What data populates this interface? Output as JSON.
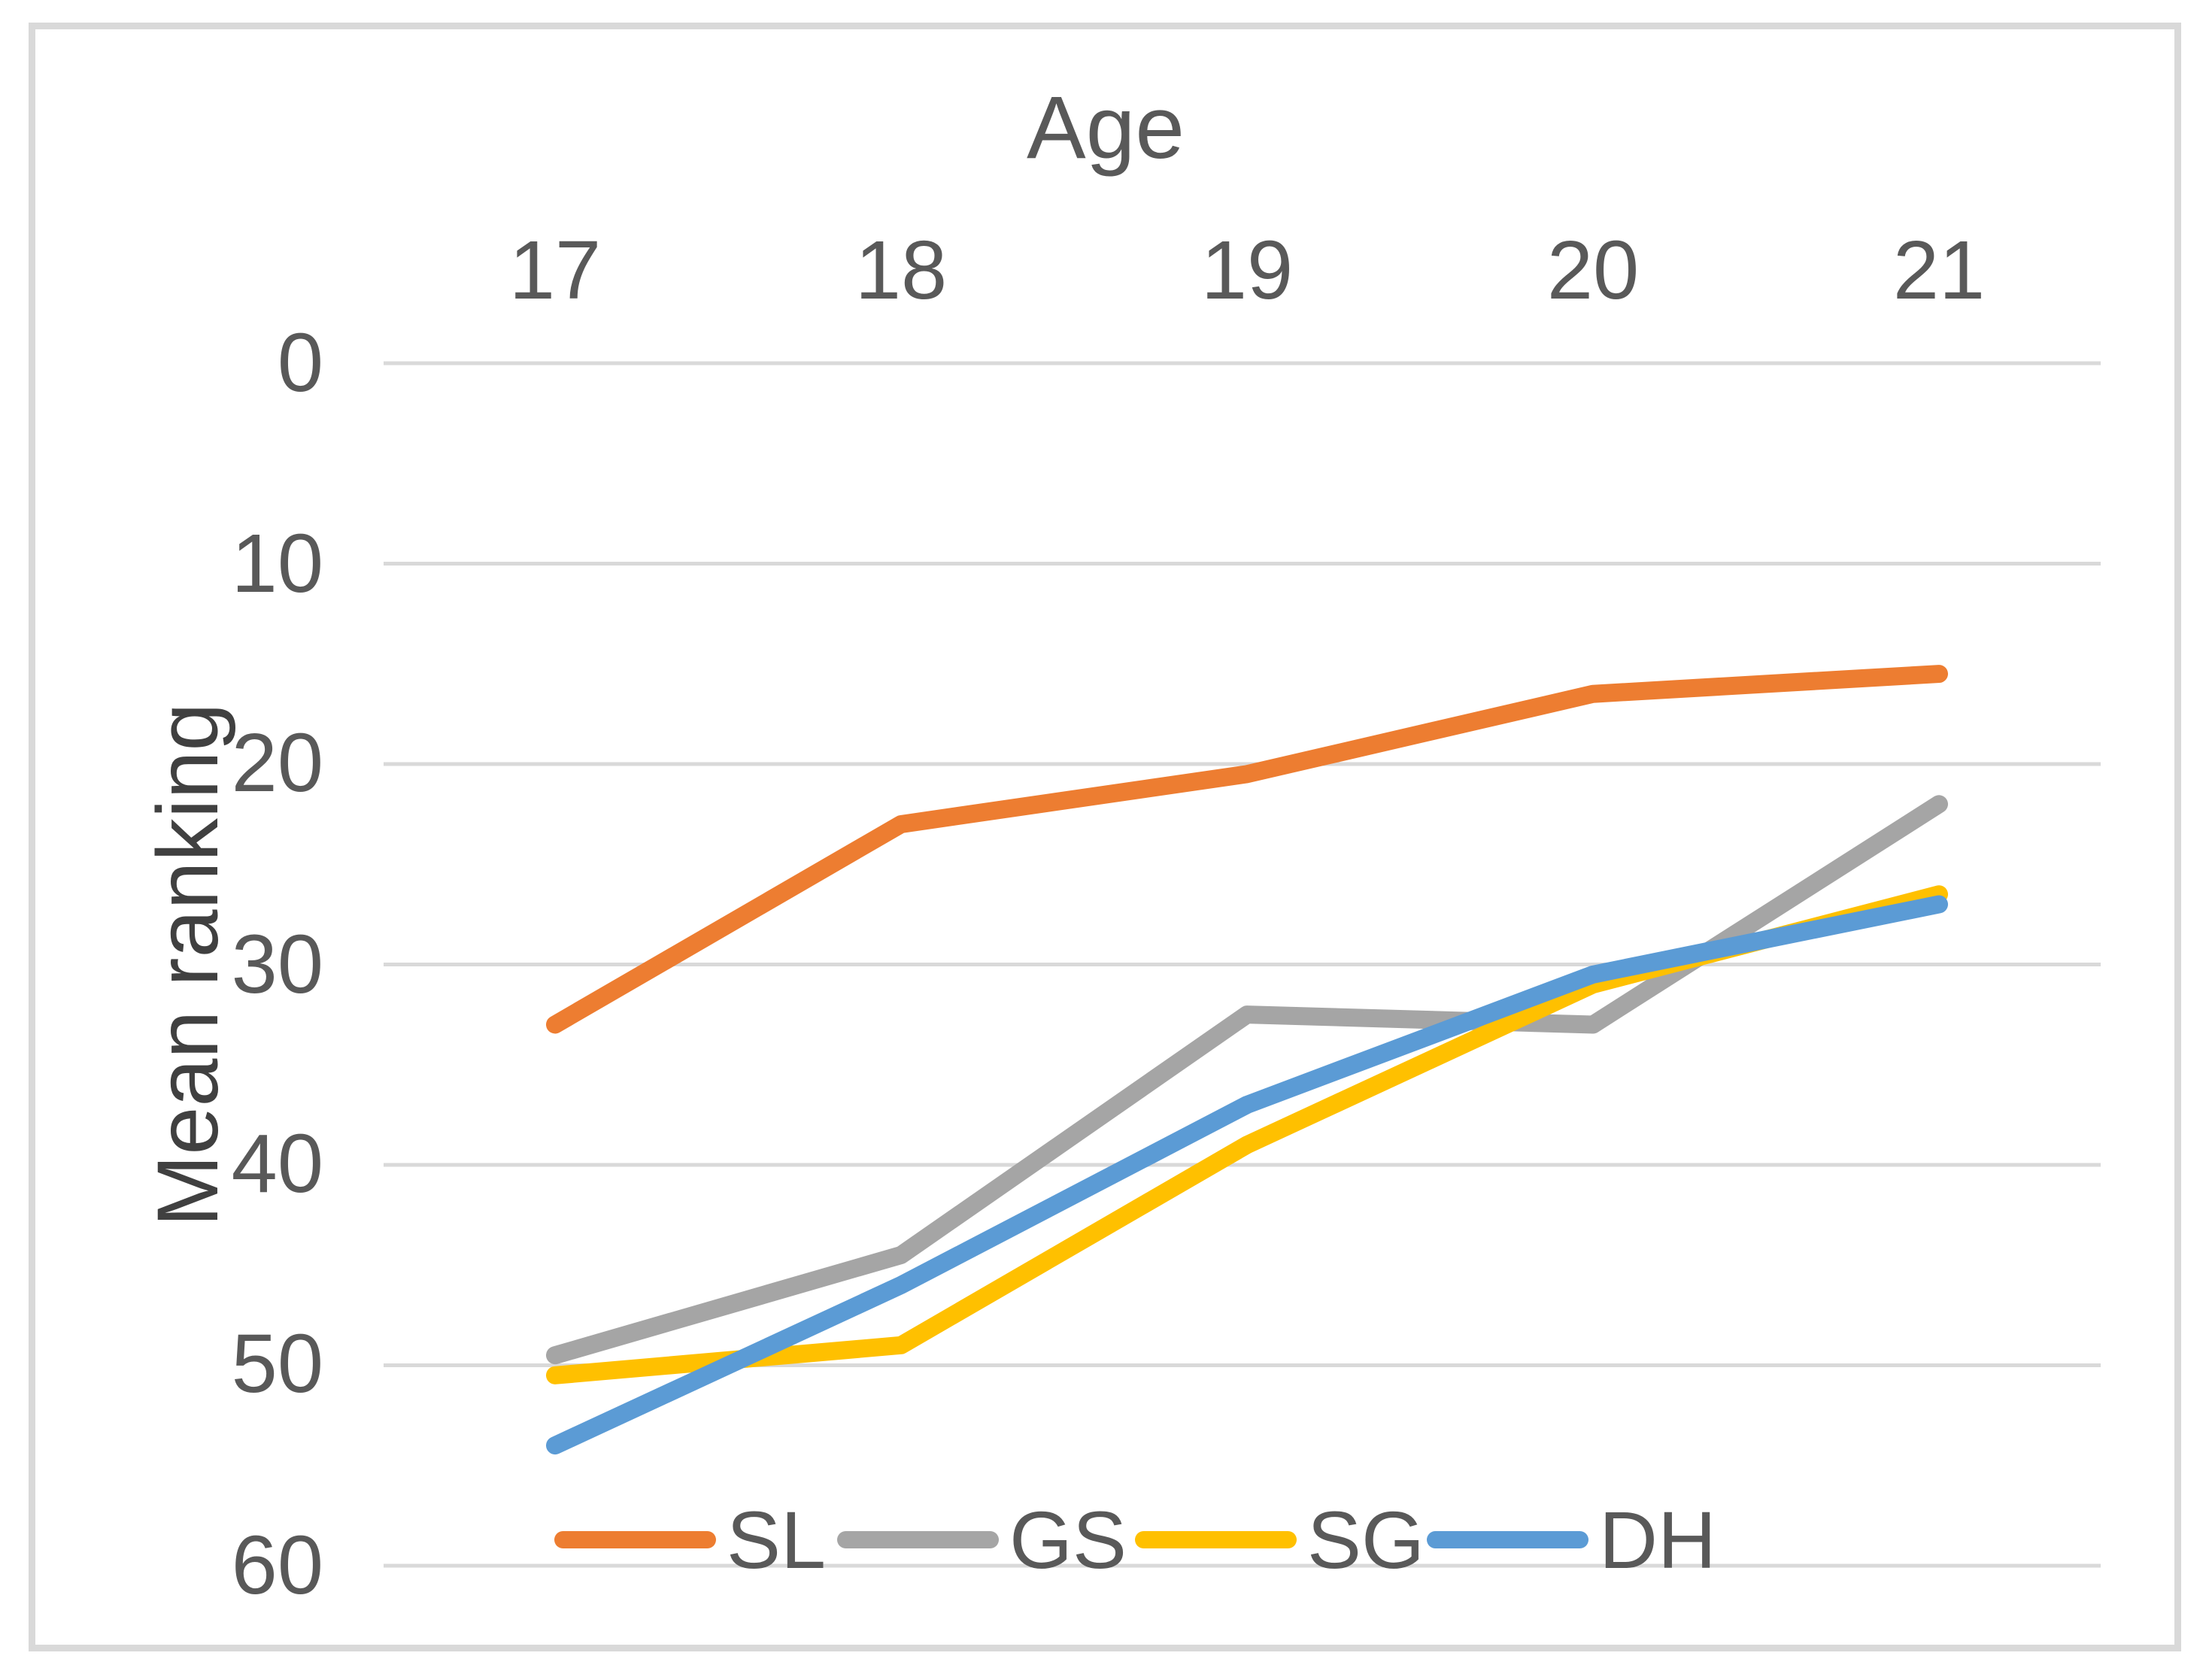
{
  "chart_data": {
    "type": "line",
    "title": "Age",
    "title_position": "top",
    "x_axis": {
      "position": "top",
      "categories": [
        "17",
        "18",
        "19",
        "20",
        "21"
      ]
    },
    "y_axis": {
      "label": "Mean ranking",
      "min": 0,
      "max": 60,
      "tick_step": 10,
      "inverted": true,
      "ticks": [
        "0",
        "10",
        "20",
        "30",
        "40",
        "50",
        "60"
      ]
    },
    "grid": "horizontal",
    "legend_position": "bottom",
    "text_color": "#595959",
    "grid_color": "#d9d9d9",
    "series": [
      {
        "name": "SL",
        "color": "#ED7D31",
        "values": [
          33,
          23,
          20.5,
          16.5,
          15.5
        ]
      },
      {
        "name": "GS",
        "color": "#A5A5A5",
        "values": [
          49.5,
          44.5,
          32.5,
          33,
          22
        ]
      },
      {
        "name": "SG",
        "color": "#FFC000",
        "values": [
          50.5,
          49,
          39,
          31,
          26.5
        ]
      },
      {
        "name": "DH",
        "color": "#5B9BD5",
        "values": [
          54,
          46,
          37,
          30.5,
          27
        ]
      }
    ]
  }
}
